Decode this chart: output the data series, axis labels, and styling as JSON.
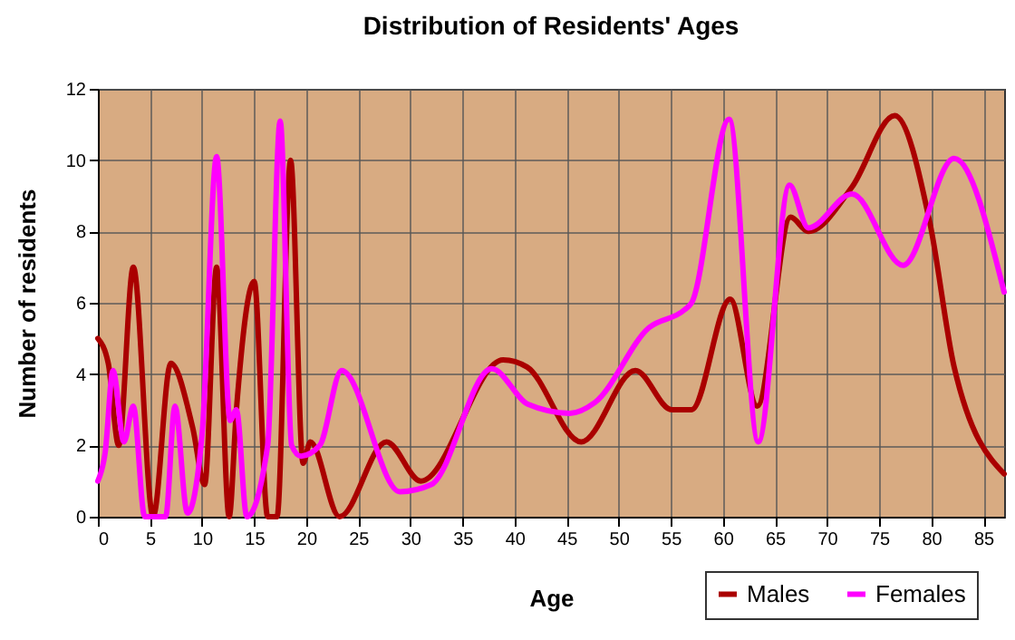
{
  "chart_data": {
    "type": "line",
    "title": "Distribution of Residents' Ages",
    "xlabel": "Age",
    "ylabel": "Number of residents",
    "xlim": [
      0,
      87
    ],
    "xticks": [
      0,
      5,
      10,
      15,
      20,
      25,
      30,
      35,
      40,
      45,
      50,
      55,
      60,
      65,
      70,
      75,
      80,
      85
    ],
    "ylim": [
      0,
      12
    ],
    "yticks": [
      0,
      2,
      4,
      6,
      8,
      10,
      12
    ],
    "grid": true,
    "legend": "bottom right",
    "line_style": "solid",
    "marker": "none",
    "series": [
      {
        "name": "Males",
        "color": "#aa0000",
        "x": [
          0,
          1,
          2,
          3.4,
          5.3,
          7,
          9.1,
          10.25,
          11.4,
          12.6,
          13.3,
          15,
          16.3,
          17.2,
          18.5,
          19.7,
          20.4,
          23.2,
          27.7,
          31,
          38.9,
          41.2,
          46.4,
          51.6,
          55.1,
          57,
          60.7,
          63.3,
          66.5,
          68.2,
          72.4,
          76.5,
          79.9,
          82.2,
          87
        ],
        "values": [
          5,
          4.3,
          2,
          7,
          0,
          4.3,
          2.5,
          0.9,
          7,
          0,
          3,
          6.6,
          0,
          0,
          10,
          1.5,
          2.1,
          0,
          2.1,
          1,
          4.4,
          4.2,
          2.1,
          4.1,
          3,
          3,
          6.1,
          3.1,
          8.4,
          8,
          9.25,
          11.25,
          8.2,
          4.2,
          1.2
        ]
      },
      {
        "name": "Females",
        "color": "#ff00ff",
        "x": [
          0,
          0.7,
          1.45,
          2.5,
          3.4,
          4.5,
          6.5,
          7.4,
          8.6,
          10,
          11.4,
          12.7,
          13.3,
          14.3,
          16.3,
          17.5,
          18.6,
          19.5,
          21.3,
          23.4,
          29,
          32,
          37.8,
          41.3,
          45.3,
          47.7,
          52.9,
          56.3,
          57,
          60.6,
          63.4,
          66.4,
          68.2,
          72.4,
          77.3,
          82.2,
          87
        ],
        "values": [
          1,
          1.8,
          4.1,
          2.1,
          3.1,
          0,
          0,
          3.1,
          0.1,
          2.3,
          10.1,
          2.7,
          3,
          0,
          2,
          11.1,
          2,
          1.7,
          2,
          4.1,
          0.7,
          0.9,
          4.15,
          3.15,
          2.9,
          3.2,
          5.3,
          5.8,
          6,
          11.15,
          2.1,
          9.3,
          8.1,
          9.05,
          7.05,
          10.05,
          6.3
        ]
      }
    ]
  }
}
